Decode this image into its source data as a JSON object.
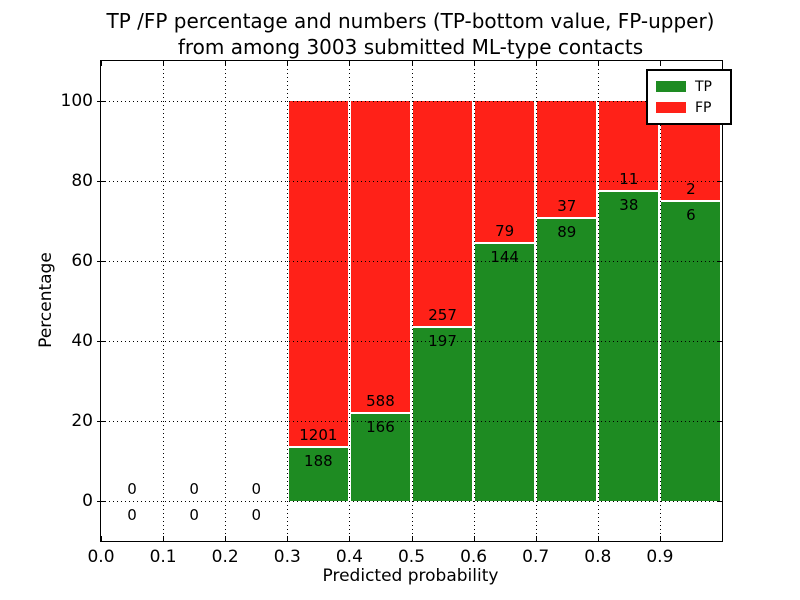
{
  "chart_data": {
    "type": "bar",
    "stacked": true,
    "title": "TP /FP percentage and numbers (TP-bottom value, FP-upper)\nfrom among 3003 submitted ML-type contacts",
    "title_line1": "TP /FP percentage and numbers (TP-bottom value, FP-upper)",
    "title_line2": "from among 3003 submitted ML-type contacts",
    "xlabel": "Predicted probability",
    "ylabel": "Percentage",
    "xlim": [
      0.0,
      1.0
    ],
    "ylim": [
      -10,
      110
    ],
    "x_ticks": [
      "0.0",
      "0.1",
      "0.2",
      "0.3",
      "0.4",
      "0.5",
      "0.6",
      "0.7",
      "0.8",
      "0.9"
    ],
    "y_ticks": [
      0,
      20,
      40,
      60,
      80,
      100
    ],
    "grid": "dotted",
    "total_contacts": 3003,
    "colors": {
      "tp": "#1e8b22",
      "fp": "#ff2118",
      "grid": "#000000",
      "background": "#ffffff"
    },
    "legend": {
      "position": "upper right",
      "entries": [
        {
          "label": "TP"
        },
        {
          "label": "FP"
        }
      ]
    },
    "bins": [
      {
        "bin": "0.0-0.1",
        "tp_count": 0,
        "fp_count": 0,
        "tp_percent": null,
        "fp_percent": null
      },
      {
        "bin": "0.1-0.2",
        "tp_count": 0,
        "fp_count": 0,
        "tp_percent": null,
        "fp_percent": null
      },
      {
        "bin": "0.2-0.3",
        "tp_count": 0,
        "fp_count": 0,
        "tp_percent": null,
        "fp_percent": null
      },
      {
        "bin": "0.3-0.4",
        "tp_count": 188,
        "fp_count": 1201,
        "tp_percent": 13.54,
        "fp_percent": 86.46
      },
      {
        "bin": "0.4-0.5",
        "tp_count": 166,
        "fp_count": 588,
        "tp_percent": 22.02,
        "fp_percent": 77.98
      },
      {
        "bin": "0.5-0.6",
        "tp_count": 197,
        "fp_count": 257,
        "tp_percent": 43.39,
        "fp_percent": 56.61
      },
      {
        "bin": "0.6-0.7",
        "tp_count": 144,
        "fp_count": 79,
        "tp_percent": 64.57,
        "fp_percent": 35.43
      },
      {
        "bin": "0.7-0.8",
        "tp_count": 89,
        "fp_count": 37,
        "tp_percent": 70.63,
        "fp_percent": 29.37
      },
      {
        "bin": "0.8-0.9",
        "tp_count": 38,
        "fp_count": 11,
        "tp_percent": 77.55,
        "fp_percent": 22.45
      },
      {
        "bin": "0.9-1.0",
        "tp_count": 6,
        "fp_count": 2,
        "tp_percent": 75.0,
        "fp_percent": 25.0
      }
    ]
  }
}
